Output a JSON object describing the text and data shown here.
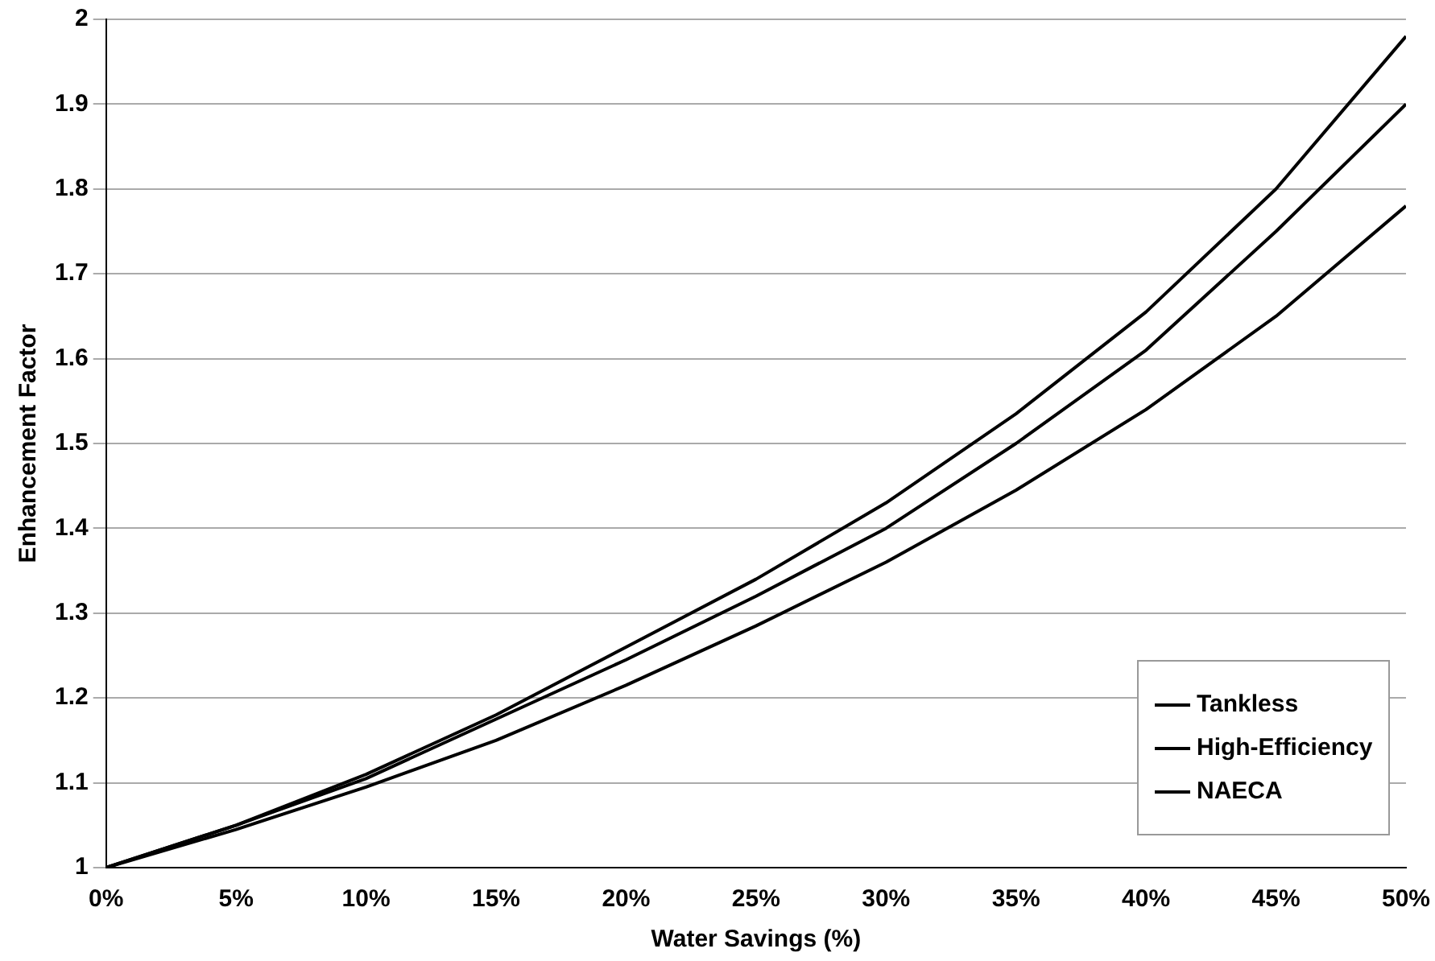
{
  "chart_data": {
    "type": "line",
    "xlabel": "Water Savings (%)",
    "ylabel": "Enhancement Factor",
    "x": [
      0,
      5,
      10,
      15,
      20,
      25,
      30,
      35,
      40,
      45,
      50
    ],
    "series": [
      {
        "name": "Tankless",
        "color": "#000000",
        "values": [
          1,
          1.05,
          1.11,
          1.18,
          1.26,
          1.34,
          1.43,
          1.535,
          1.655,
          1.8,
          1.98
        ]
      },
      {
        "name": "High-Efficiency",
        "color": "#000000",
        "values": [
          1,
          1.045,
          1.095,
          1.15,
          1.215,
          1.285,
          1.36,
          1.445,
          1.54,
          1.65,
          1.78
        ]
      },
      {
        "name": "NAECA",
        "color": "#000000",
        "values": [
          1,
          1.05,
          1.105,
          1.175,
          1.245,
          1.32,
          1.4,
          1.5,
          1.61,
          1.75,
          1.9
        ]
      }
    ],
    "xlim": [
      0,
      50
    ],
    "xticks": [
      {
        "value": 0,
        "label": "0%"
      },
      {
        "value": 5,
        "label": "5%"
      },
      {
        "value": 10,
        "label": "10%"
      },
      {
        "value": 15,
        "label": "15%"
      },
      {
        "value": 20,
        "label": "20%"
      },
      {
        "value": 25,
        "label": "25%"
      },
      {
        "value": 30,
        "label": "30%"
      },
      {
        "value": 35,
        "label": "35%"
      },
      {
        "value": 40,
        "label": "40%"
      },
      {
        "value": 45,
        "label": "45%"
      },
      {
        "value": 50,
        "label": "50%"
      }
    ],
    "ylim": [
      1,
      2
    ],
    "yticks": [
      1,
      1.1,
      1.2,
      1.3,
      1.4,
      1.5,
      1.6,
      1.7,
      1.8,
      1.9,
      2
    ],
    "grid": "y",
    "legend": "bottom right",
    "marker": "none",
    "line_style": "solid"
  }
}
